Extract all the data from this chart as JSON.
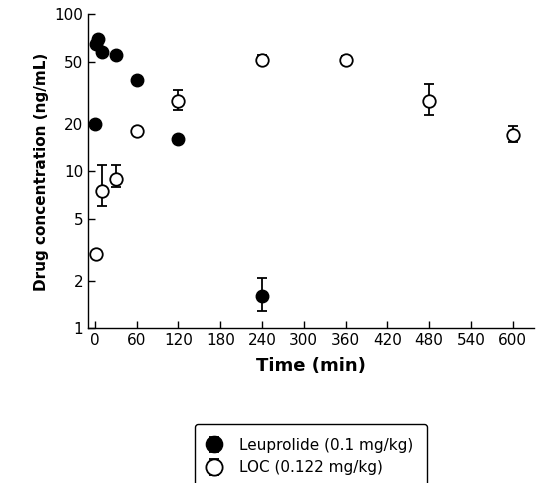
{
  "title": "",
  "xlabel": "Time (min)",
  "ylabel": "Drug concentration (ng/mL)",
  "xlim": [
    -10,
    630
  ],
  "xticks": [
    0,
    60,
    120,
    180,
    240,
    300,
    360,
    420,
    480,
    540,
    600
  ],
  "ylim_log": [
    1,
    100
  ],
  "yticks": [
    1,
    2,
    5,
    10,
    20,
    50,
    100
  ],
  "leuprolide": {
    "label": "Leuprolide (0.1 mg/kg)",
    "x": [
      0,
      2,
      5,
      10,
      30,
      60,
      120,
      240
    ],
    "y": [
      20.0,
      65.0,
      70.0,
      58.0,
      55.0,
      38.0,
      16.0,
      1.6
    ],
    "yerr_lo": [
      0,
      0,
      0,
      0,
      0,
      0,
      0,
      0.3
    ],
    "yerr_hi": [
      0,
      0,
      0,
      0,
      0,
      0,
      0,
      0.5
    ],
    "color": "#000000",
    "markersize": 9
  },
  "loc": {
    "label": "LOC (0.122 mg/kg)",
    "x": [
      2,
      10,
      30,
      60,
      120,
      240,
      360,
      480,
      600
    ],
    "y": [
      3.0,
      7.5,
      9.0,
      18.0,
      28.0,
      51.0,
      51.0,
      28.0,
      17.0
    ],
    "yerr_lo": [
      0,
      1.5,
      1.0,
      0,
      3.5,
      2.5,
      2.0,
      5.0,
      1.5
    ],
    "yerr_hi": [
      0,
      3.5,
      2.0,
      0,
      5.0,
      4.5,
      3.5,
      8.0,
      2.5
    ],
    "color": "#000000",
    "markersize": 9
  },
  "background_color": "#ffffff",
  "xlabel_fontsize": 13,
  "ylabel_fontsize": 11,
  "tick_labelsize": 11
}
